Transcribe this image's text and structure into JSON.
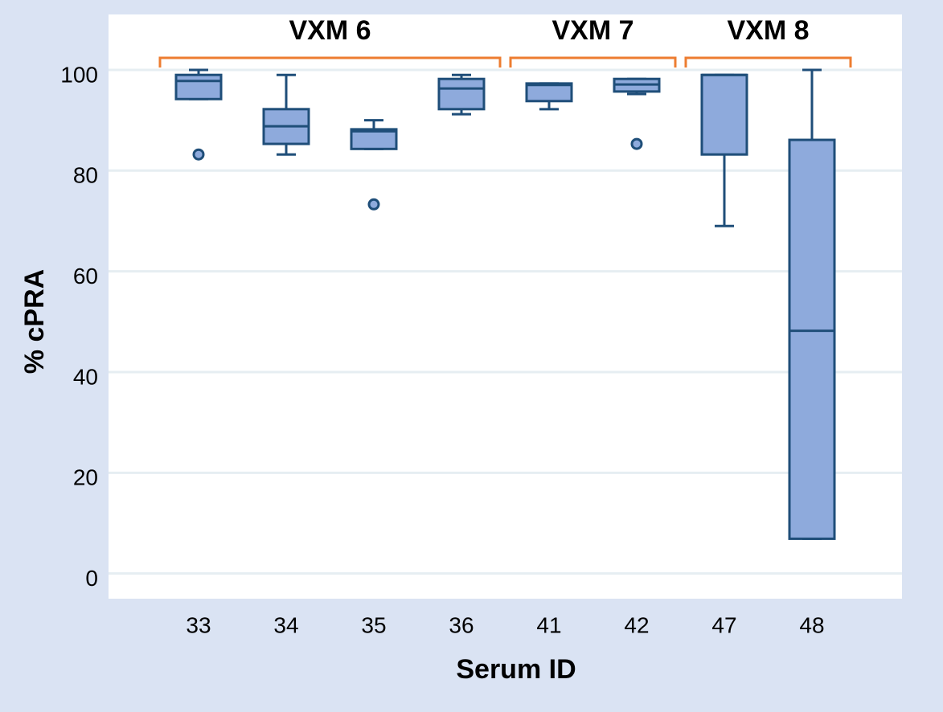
{
  "chart_data": {
    "type": "box",
    "x_label": "Serum ID",
    "y_label": "% cPRA",
    "categories": [
      "33",
      "34",
      "35",
      "36",
      "41",
      "42",
      "47",
      "48"
    ],
    "boxes": [
      {
        "whisker_low": 94.2,
        "q1": 94.2,
        "median": 97.8,
        "q3": 99,
        "whisker_high": 100,
        "outliers": [
          83.2
        ]
      },
      {
        "whisker_low": 83.2,
        "q1": 85.3,
        "median": 88.8,
        "q3": 92.2,
        "whisker_high": 99,
        "outliers": []
      },
      {
        "whisker_low": 84.3,
        "q1": 84.3,
        "median": 87.8,
        "q3": 88.2,
        "whisker_high": 90,
        "outliers": [
          73.3
        ]
      },
      {
        "whisker_low": 91.2,
        "q1": 92.2,
        "median": 96.3,
        "q3": 98.2,
        "whisker_high": 99,
        "outliers": []
      },
      {
        "whisker_low": 92.2,
        "q1": 93.8,
        "median": 97,
        "q3": 97.3,
        "whisker_high": 97.3,
        "outliers": []
      },
      {
        "whisker_low": 95.2,
        "q1": 95.7,
        "median": 97.1,
        "q3": 98.2,
        "whisker_high": 98.2,
        "outliers": [
          85.3
        ]
      },
      {
        "whisker_low": 69,
        "q1": 83.2,
        "median": 99,
        "q3": 99,
        "whisker_high": 99,
        "outliers": []
      },
      {
        "whisker_low": 6.9,
        "q1": 6.9,
        "median": 48.2,
        "q3": 86.1,
        "whisker_high": 100,
        "outliers": []
      }
    ],
    "groups": [
      {
        "label": "VXM 6",
        "members": [
          "33",
          "34",
          "35",
          "36"
        ]
      },
      {
        "label": "VXM 7",
        "members": [
          "41",
          "42"
        ]
      },
      {
        "label": "VXM 8",
        "members": [
          "47",
          "48"
        ]
      }
    ],
    "color": "#8eaadc",
    "edge_color": "#1f4e79",
    "group_color": "#ed7d31",
    "ylim": [
      -5,
      111
    ],
    "yticks": [
      0,
      20,
      40,
      60,
      80,
      100
    ],
    "grid": true
  }
}
